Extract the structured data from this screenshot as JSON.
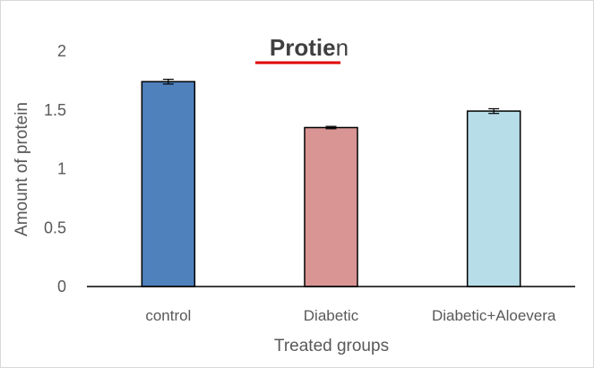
{
  "chart_data": {
    "type": "bar",
    "title": {
      "bold_part": "Protie",
      "rest": "n"
    },
    "xlabel": "Treated groups",
    "ylabel": "Amount of protein",
    "categories": [
      "control",
      "Diabetic",
      "Diabetic+Aloevera"
    ],
    "values": [
      1.74,
      1.35,
      1.49
    ],
    "errors": [
      0.02,
      0.01,
      0.02
    ],
    "ylim": [
      0,
      2
    ],
    "yticks": [
      "0",
      "0.5",
      "1",
      "1.5",
      "2"
    ],
    "colors": [
      "#4f81bd",
      "#d99594",
      "#b7dde8"
    ],
    "title_underline_color": "#e00000",
    "grid": false,
    "legend": "none"
  }
}
